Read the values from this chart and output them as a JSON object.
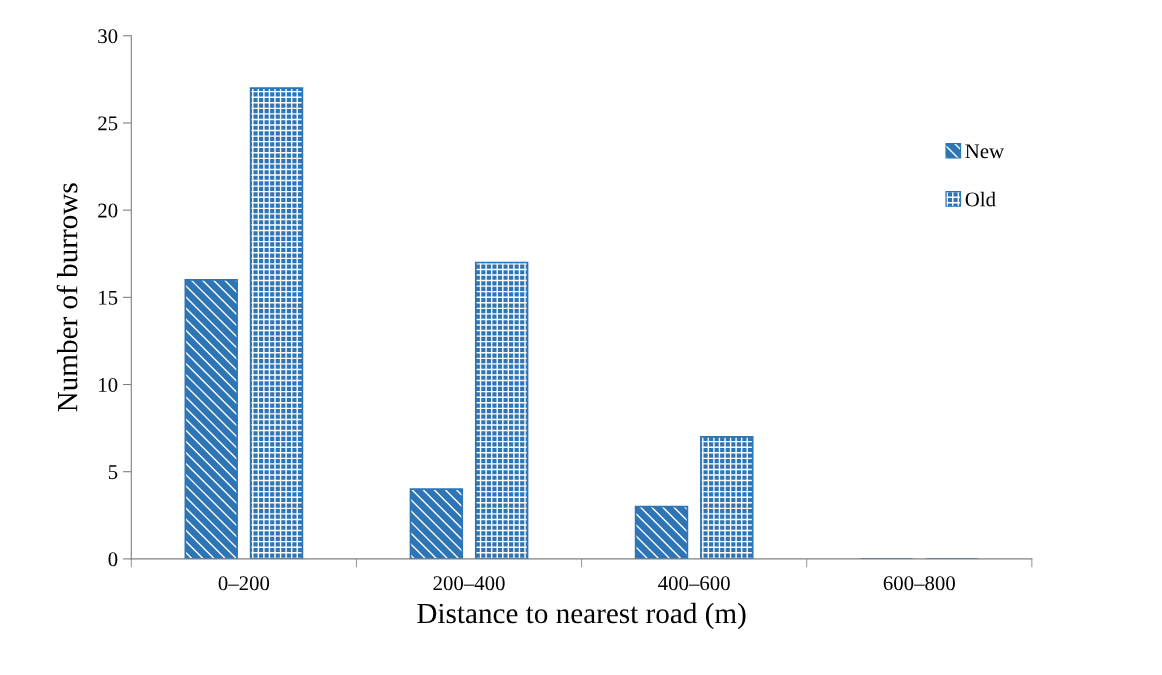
{
  "chart_data": {
    "type": "bar",
    "xlabel": "Distance to nearest road (m)",
    "ylabel": "Number of burrows",
    "categories": [
      "0–200",
      "200–400",
      "400–600",
      "600–800"
    ],
    "series": [
      {
        "name": "New",
        "color": "#2e75b6",
        "values": [
          16,
          4,
          3,
          0
        ]
      },
      {
        "name": "Old",
        "color": "#2e75b6",
        "values": [
          27,
          17,
          7,
          0
        ]
      }
    ],
    "ylim": [
      0,
      30
    ],
    "yticks": [
      0,
      5,
      10,
      15,
      20,
      25,
      30
    ],
    "grid": false,
    "legend": "top right"
  }
}
